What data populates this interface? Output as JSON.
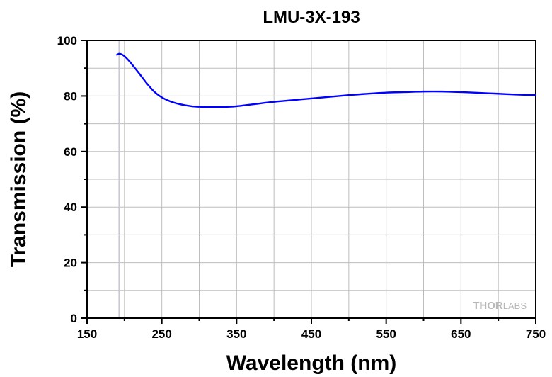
{
  "chart_data": {
    "type": "line",
    "title": "LMU-3X-193",
    "xlabel": "Wavelength (nm)",
    "ylabel": "Transmission (%)",
    "xlim": [
      150,
      750
    ],
    "ylim": [
      0,
      100
    ],
    "x_ticks": [
      150,
      250,
      350,
      450,
      550,
      650,
      750
    ],
    "y_ticks": [
      0,
      20,
      40,
      60,
      80,
      100
    ],
    "grid": true,
    "reference_line_x": 193,
    "series": [
      {
        "color": "#0000ff",
        "x": [
          190,
          193,
          196,
          200,
          205,
          210,
          220,
          230,
          240,
          250,
          260,
          270,
          280,
          290,
          300,
          310,
          320,
          330,
          340,
          350,
          360,
          375,
          400,
          425,
          450,
          475,
          500,
          525,
          550,
          575,
          600,
          625,
          650,
          675,
          700,
          725,
          750
        ],
        "y": [
          94.8,
          95.2,
          95.0,
          94.3,
          93.0,
          91.4,
          88.0,
          84.5,
          81.5,
          79.5,
          78.2,
          77.3,
          76.7,
          76.3,
          76.1,
          76.0,
          76.0,
          76.0,
          76.1,
          76.3,
          76.6,
          77.1,
          77.9,
          78.5,
          79.1,
          79.7,
          80.3,
          80.8,
          81.2,
          81.4,
          81.6,
          81.6,
          81.4,
          81.1,
          80.8,
          80.5,
          80.3
        ]
      }
    ]
  },
  "watermark": {
    "part1": "THOR",
    "part2": "LABS"
  }
}
